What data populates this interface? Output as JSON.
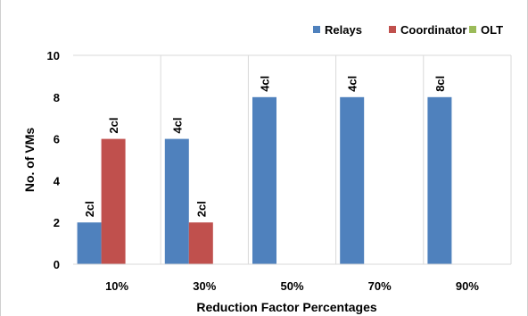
{
  "chart_data": {
    "type": "bar",
    "title": "",
    "xlabel": "Reduction Factor Percentages",
    "ylabel": "No. of VMs",
    "ylim": [
      0,
      10
    ],
    "yticks": [
      0,
      2,
      4,
      6,
      8,
      10
    ],
    "categories": [
      "10%",
      "30%",
      "50%",
      "70%",
      "90%"
    ],
    "grid": "vertical category separators",
    "legend_position": "top-right",
    "series": [
      {
        "name": "Relays",
        "color": "#4f81bd",
        "values": [
          2,
          6,
          8,
          8,
          8
        ],
        "labels": [
          "2cl",
          "4cl",
          "4cl",
          "4cl",
          "8cl"
        ]
      },
      {
        "name": "Coordinator",
        "color": "#c0504d",
        "values": [
          6,
          2,
          0,
          0,
          0
        ],
        "labels": [
          "2cl",
          "2cl",
          "",
          "",
          ""
        ]
      },
      {
        "name": "OLT",
        "color": "#9bbb59",
        "values": [
          0,
          0,
          0,
          0,
          0
        ],
        "labels": [
          "",
          "",
          "",
          "",
          ""
        ]
      }
    ]
  }
}
